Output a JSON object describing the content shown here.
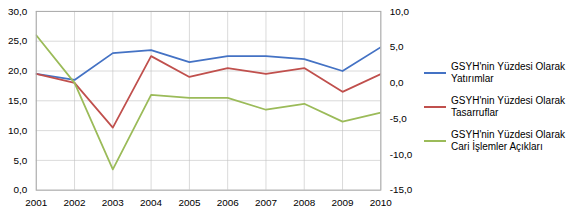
{
  "chart_data": {
    "type": "line",
    "x": [
      2001,
      2002,
      2003,
      2004,
      2005,
      2006,
      2007,
      2008,
      2009,
      2010
    ],
    "xlim": [
      2001,
      2010
    ],
    "xticks": [
      2001,
      2002,
      2003,
      2004,
      2005,
      2006,
      2007,
      2008,
      2009,
      2010
    ],
    "series": [
      {
        "name": "GSYH'nin Yüzdesi Olarak\nYatırımlar",
        "color": "#4472C4",
        "values": [
          19.5,
          18.5,
          23.0,
          23.5,
          21.5,
          22.5,
          22.5,
          22.0,
          20.0,
          24.0
        ]
      },
      {
        "name": "GSYH'nin Yüzdesi Olarak\nTasarruflar",
        "color": "#C0504D",
        "values": [
          19.5,
          18.0,
          10.5,
          22.5,
          19.0,
          20.5,
          19.5,
          20.5,
          16.5,
          19.5
        ]
      },
      {
        "name": "GSYH'nin Yüzdesi Olarak\nCari İşlemler Açıkları",
        "color": "#9BBB59",
        "values": [
          26.0,
          18.0,
          3.5,
          16.0,
          15.5,
          15.5,
          13.5,
          14.5,
          11.5,
          13.0
        ]
      }
    ],
    "ylim": [
      0,
      30
    ],
    "yticks": [
      {
        "value": 0,
        "label": "0,0"
      },
      {
        "value": 5,
        "label": "5,0"
      },
      {
        "value": 10,
        "label": "10,0"
      },
      {
        "value": 15,
        "label": "15,0"
      },
      {
        "value": 20,
        "label": "20,0"
      },
      {
        "value": 25,
        "label": "25,0"
      },
      {
        "value": 30,
        "label": "30,0"
      }
    ],
    "y2lim": [
      -15,
      10
    ],
    "y2ticks": [
      {
        "value": -15,
        "label": "-15,0"
      },
      {
        "value": -10,
        "label": "-10,0"
      },
      {
        "value": -5,
        "label": "-5,0"
      },
      {
        "value": 0,
        "label": "0,0"
      },
      {
        "value": 5,
        "label": "5,0"
      },
      {
        "value": 10,
        "label": "10,0"
      }
    ],
    "grid": true,
    "legend": "right"
  }
}
